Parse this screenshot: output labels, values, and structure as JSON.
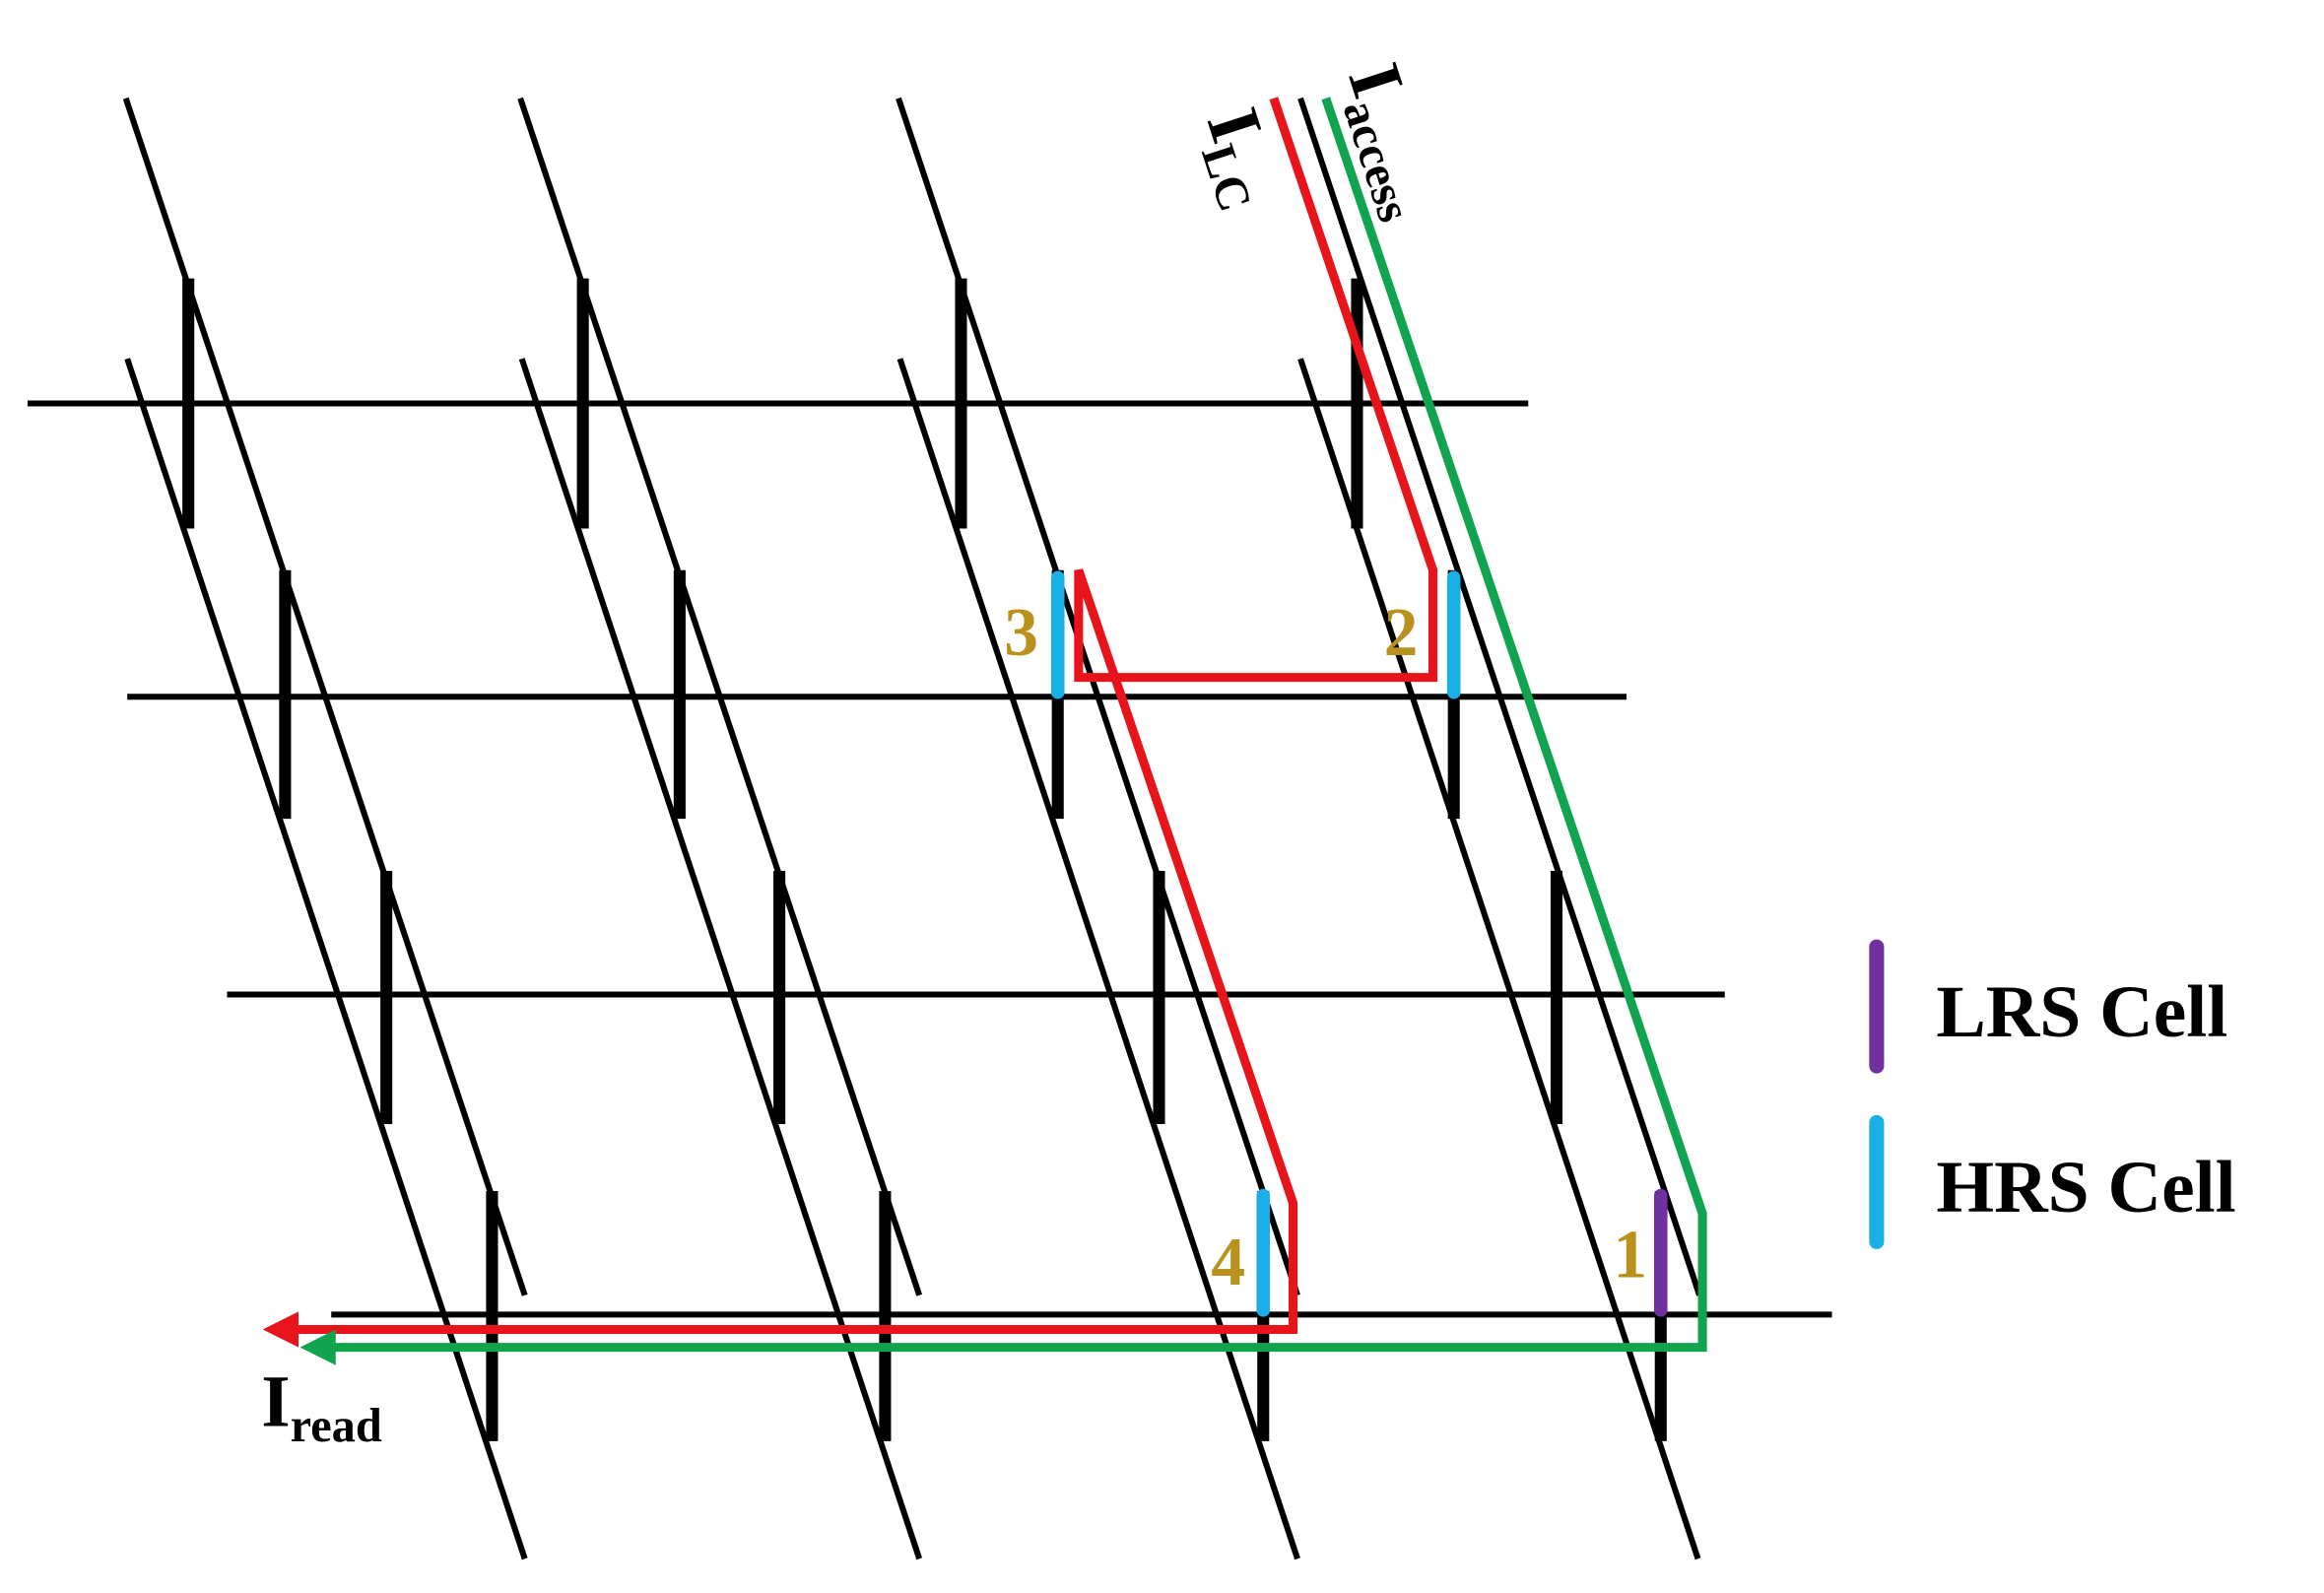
{
  "currents": {
    "lc": {
      "main": "I",
      "sub": "LC"
    },
    "access": {
      "main": "I",
      "sub": "access"
    },
    "read": {
      "main": "I",
      "sub": "read"
    }
  },
  "cells": {
    "one": "1",
    "two": "2",
    "three": "3",
    "four": "4"
  },
  "legend": [
    {
      "label": "LRS Cell",
      "color": "#7030a0"
    },
    {
      "label": "HRS Cell",
      "color": "#1aafe6"
    }
  ]
}
